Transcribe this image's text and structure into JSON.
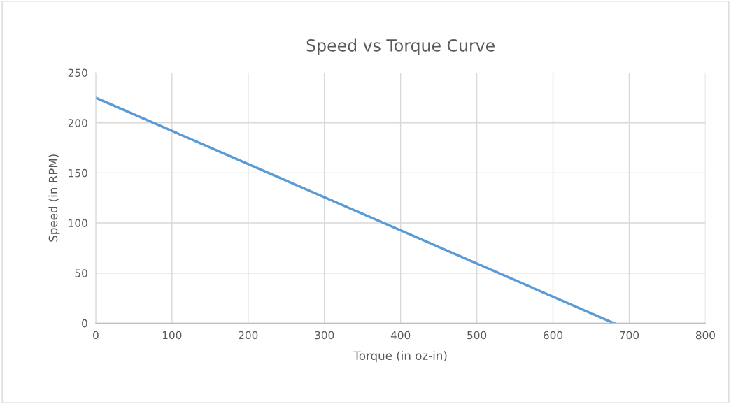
{
  "chart_data": {
    "type": "line",
    "title": "Speed vs Torque Curve",
    "xlabel": "Torque (in oz-in)",
    "ylabel": "Speed (in RPM)",
    "x": [
      0,
      680
    ],
    "series": [
      {
        "color": "#5b9bd5",
        "values": [
          225,
          0
        ]
      }
    ],
    "xlim": [
      0,
      800
    ],
    "xticks": [
      0,
      100,
      200,
      300,
      400,
      500,
      600,
      700,
      800
    ],
    "ylim": [
      0,
      250
    ],
    "yticks": [
      0,
      50,
      100,
      150,
      200,
      250
    ],
    "grid": true,
    "marker": "none",
    "line_style": "solid"
  }
}
